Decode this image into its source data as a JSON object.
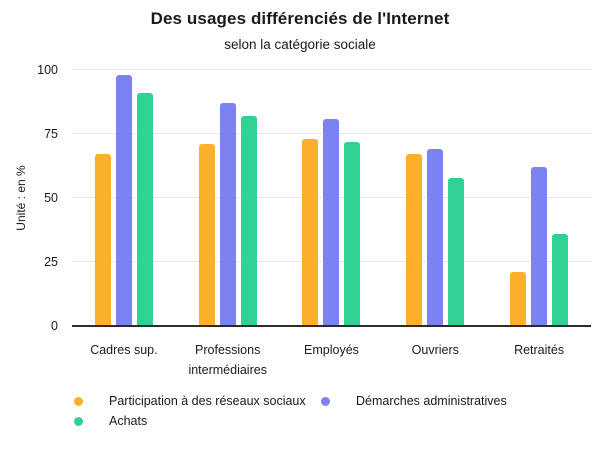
{
  "chart": {
    "title": "Des usages différenciés de l'Internet",
    "subtitle": "selon la catégorie sociale",
    "ylabel": "Unité : en %"
  },
  "chart_data": {
    "type": "bar",
    "title": "Des usages différenciés de l'Internet",
    "subtitle": "selon la catégorie sociale",
    "xlabel": "",
    "ylabel": "Unité : en %",
    "ylim": [
      0,
      100
    ],
    "yticks": [
      0,
      25,
      50,
      75,
      100
    ],
    "grid": true,
    "legend_position": "bottom",
    "categories": [
      "Cadres sup.",
      "Professions intermédiaires",
      "Employés",
      "Ouvriers",
      "Retraités"
    ],
    "series": [
      {
        "name": "Participation à des réseaux sociaux",
        "color": "#FDB12B",
        "values": [
          67,
          71,
          73,
          67,
          21
        ]
      },
      {
        "name": "Démarches administratives",
        "color": "#7D82F2",
        "values": [
          98,
          87,
          81,
          69,
          62
        ]
      },
      {
        "name": "Achats",
        "color": "#32D296",
        "values": [
          91,
          82,
          72,
          58,
          36
        ]
      }
    ],
    "colors": {
      "background": "#ffffff",
      "gridline": "#e8e8e8",
      "axis_line": "#2b2b2b",
      "text": "#1a1a1a"
    }
  }
}
